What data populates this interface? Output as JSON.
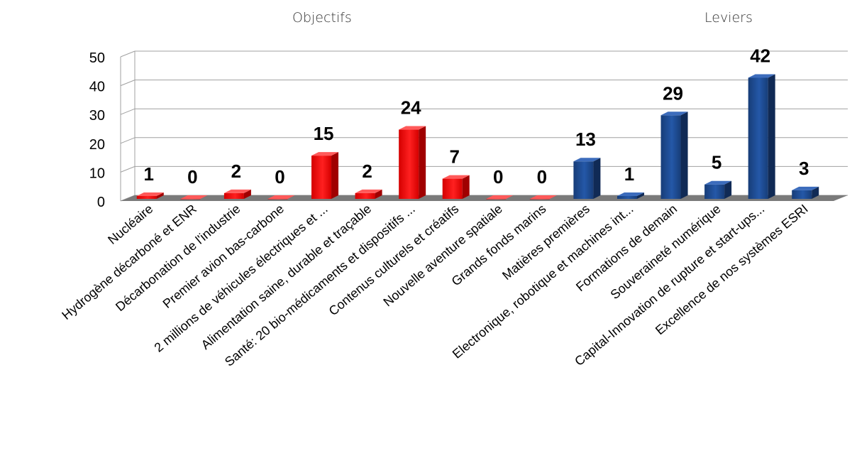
{
  "chart_data": {
    "type": "bar",
    "group_labels": [
      "Objectifs",
      "Leviers"
    ],
    "categories": [
      "Nucléaire",
      "Hydrogène décarboné et ENR",
      "Décarbonation de l'industrie",
      "Premier avion bas-carbone",
      "2 millions de véhicules électriques et ...",
      "Alimentation saine, durable et traçable",
      "Santé: 20 bio-médicaments et dispositifs ...",
      "Contenus culturels et créatifs",
      "Nouvelle aventure spatiale",
      "Grands fonds marins",
      "Matières premières",
      "Electronique, robotique et machines int...",
      "Formations de demain",
      "Souveraineté numérique",
      "Capital-Innovation de rupture et start-ups...",
      "Excellence de nos systèmes ESRI"
    ],
    "values": [
      1,
      0,
      2,
      0,
      15,
      2,
      24,
      7,
      0,
      0,
      13,
      1,
      29,
      5,
      42,
      3
    ],
    "groups": [
      "Objectifs",
      "Objectifs",
      "Objectifs",
      "Objectifs",
      "Objectifs",
      "Objectifs",
      "Objectifs",
      "Objectifs",
      "Objectifs",
      "Objectifs",
      "Leviers",
      "Leviers",
      "Leviers",
      "Leviers",
      "Leviers",
      "Leviers"
    ],
    "colors": {
      "Objectifs": "#ff0000",
      "Leviers": "#1f4e96"
    },
    "yticks": [
      "0",
      "10",
      "20",
      "30",
      "40",
      "50"
    ],
    "ylim": [
      0,
      50
    ],
    "grid": true,
    "legend": "none"
  }
}
